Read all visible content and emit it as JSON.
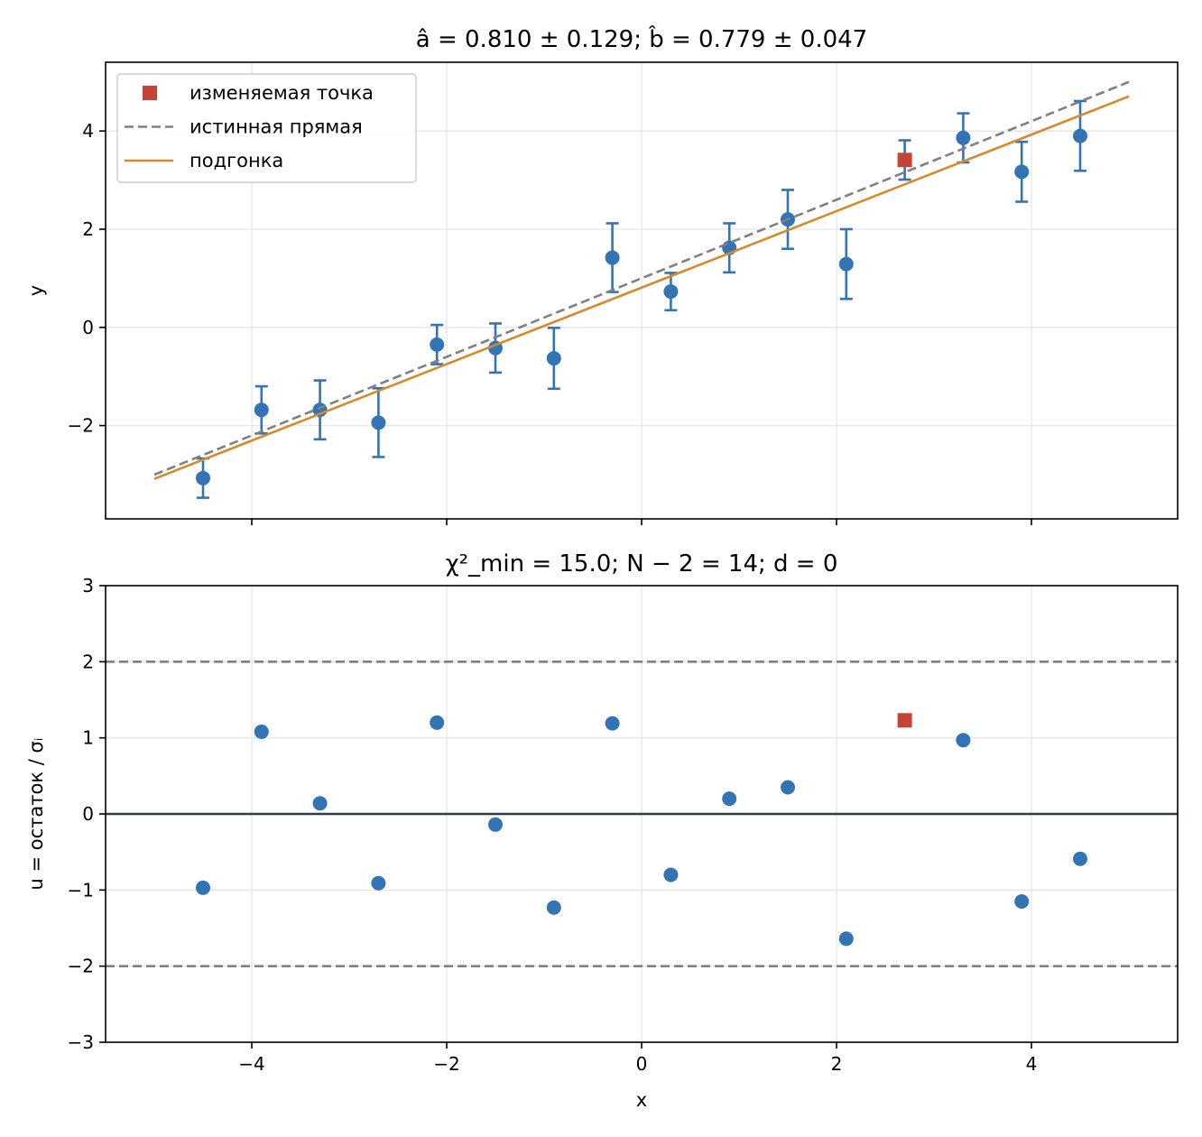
{
  "chart_data": [
    {
      "type": "scatter",
      "title": "â = 0.810 ± 0.129; b̂ = 0.779 ± 0.047",
      "xlabel": "",
      "ylabel": "y",
      "xlim": [
        -5.5,
        5.5
      ],
      "ylim": [
        -3.9,
        5.4
      ],
      "xticks": [
        -4,
        -2,
        0,
        2,
        4
      ],
      "yticks": [
        -2,
        0,
        2,
        4
      ],
      "ytick_labels": [
        "−2",
        "0",
        "2",
        "4"
      ],
      "grid": true,
      "legend_position": "upper-left",
      "legend": [
        {
          "label": "изменяемая точка",
          "marker": "square",
          "color": "#c44536"
        },
        {
          "label": "истинная прямая",
          "style": "dashed",
          "color": "#808080"
        },
        {
          "label": "подгонка",
          "style": "solid",
          "color": "#d68a2b"
        }
      ],
      "series": [
        {
          "type": "errorbar",
          "color": "#3274b4",
          "x": [
            -4.5,
            -3.9,
            -3.3,
            -2.7,
            -2.1,
            -1.5,
            -0.9,
            -0.3,
            0.3,
            0.9,
            1.5,
            2.1,
            2.7,
            3.3,
            3.9,
            4.5
          ],
          "y": [
            -3.07,
            -1.68,
            -1.68,
            -1.94,
            -0.35,
            -0.42,
            -0.63,
            1.42,
            0.73,
            1.62,
            2.2,
            1.29,
            3.41,
            3.86,
            3.17,
            3.9
          ],
          "yerr": [
            0.4,
            0.48,
            0.6,
            0.7,
            0.4,
            0.5,
            0.62,
            0.7,
            0.38,
            0.5,
            0.6,
            0.71,
            0.4,
            0.5,
            0.61,
            0.71
          ]
        },
        {
          "type": "line",
          "style": "dashed",
          "color": "#808080",
          "x": [
            -5,
            5
          ],
          "y": [
            -3,
            5
          ]
        },
        {
          "type": "line",
          "style": "solid",
          "color": "#d68a2b",
          "x": [
            -5,
            5
          ],
          "y": [
            -3.085,
            4.705
          ]
        },
        {
          "type": "marker",
          "marker": "square",
          "color": "#c44536",
          "x": [
            2.7
          ],
          "y": [
            3.41
          ]
        }
      ]
    },
    {
      "type": "scatter",
      "title": "χ²_min = 15.0; N − 2 = 14; d = 0",
      "xlabel": "x",
      "ylabel": "u = остаток / σᵢ",
      "xlim": [
        -5.5,
        5.5
      ],
      "ylim": [
        -3,
        3
      ],
      "xticks": [
        -4,
        -2,
        0,
        2,
        4
      ],
      "xtick_labels": [
        "−4",
        "−2",
        "0",
        "2",
        "4"
      ],
      "yticks": [
        -3,
        -2,
        -1,
        0,
        1,
        2,
        3
      ],
      "ytick_labels": [
        "−3",
        "−2",
        "−1",
        "0",
        "1",
        "2",
        "3"
      ],
      "grid": true,
      "hlines": [
        {
          "y": 2,
          "style": "dashed",
          "color": "#808080"
        },
        {
          "y": -2,
          "style": "dashed",
          "color": "#808080"
        },
        {
          "y": 0,
          "style": "solid",
          "color": "#2b3e4c"
        }
      ],
      "series": [
        {
          "type": "points",
          "color": "#3274b4",
          "x": [
            -4.5,
            -3.9,
            -3.3,
            -2.7,
            -2.1,
            -1.5,
            -0.9,
            -0.3,
            0.3,
            0.9,
            1.5,
            2.1,
            3.3,
            3.9,
            4.5
          ],
          "y": [
            -0.97,
            1.08,
            0.14,
            -0.91,
            1.2,
            -0.14,
            -1.23,
            1.19,
            -0.8,
            0.2,
            0.35,
            -1.64,
            0.97,
            -1.15,
            -0.59
          ]
        },
        {
          "type": "marker",
          "marker": "square",
          "color": "#c44536",
          "x": [
            2.7
          ],
          "y": [
            1.23
          ]
        }
      ]
    }
  ]
}
